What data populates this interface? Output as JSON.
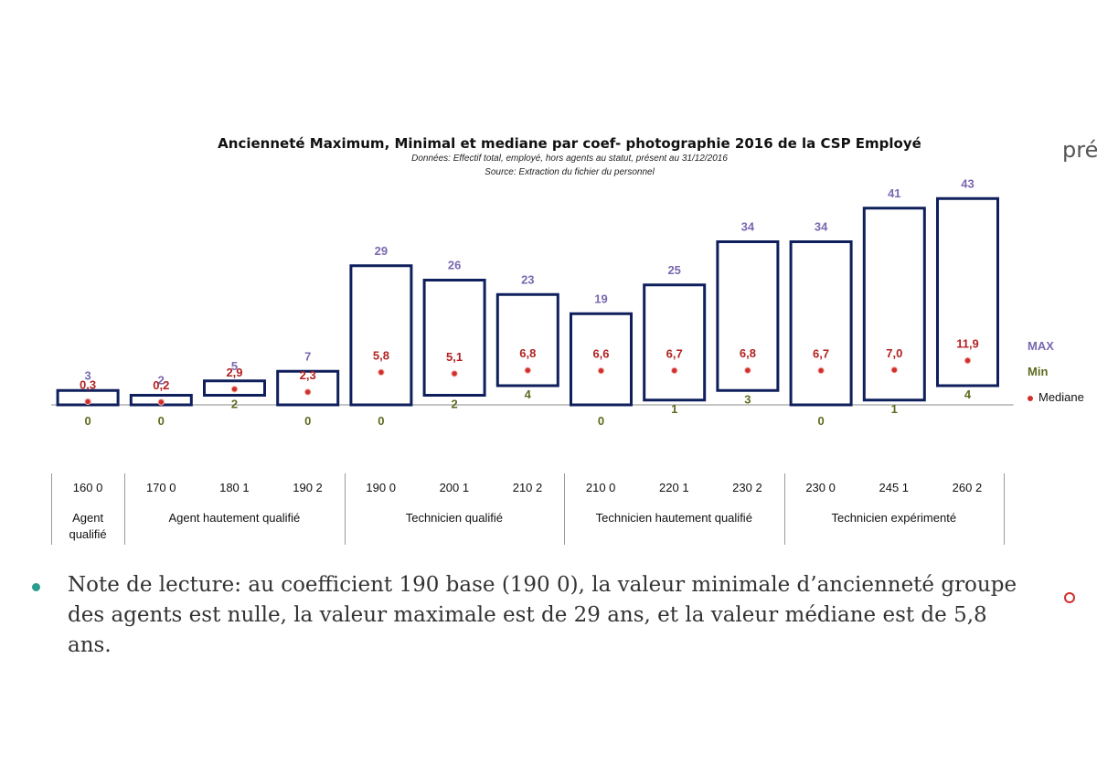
{
  "chart_data": {
    "type": "bar",
    "title": "Ancienneté Maximum, Minimal et mediane par coef- photographie 2016 de la CSP Employé",
    "subtitle_1": "Données: Effectif  total, employé, hors agents au statut, présent au 31/12/2016",
    "subtitle_2": "Source: Extraction du fichier du personnel",
    "categories": [
      "160 0",
      "170 0",
      "180 1",
      "190 2",
      "190 0",
      "200 1",
      "210 2",
      "210 0",
      "220 1",
      "230 2",
      "230 0",
      "245 1",
      "260 2"
    ],
    "series": [
      {
        "name": "MAX",
        "values": [
          3,
          2,
          5,
          7,
          29,
          26,
          23,
          19,
          25,
          34,
          34,
          41,
          43
        ]
      },
      {
        "name": "Min",
        "values": [
          0,
          0,
          2,
          0,
          0,
          2,
          4,
          0,
          1,
          3,
          0,
          1,
          4
        ]
      },
      {
        "name": "Mediane",
        "values": [
          0.3,
          0.2,
          2.9,
          2.3,
          5.8,
          5.1,
          6.8,
          6.6,
          6.7,
          6.8,
          6.7,
          7.0,
          11.9
        ]
      }
    ],
    "mediane_labels": [
      "0,3",
      "0,2",
      "2,9",
      "2,3",
      "5,8",
      "5,1",
      "6,8",
      "6,6",
      "6,7",
      "6,8",
      "6,7",
      "7,0",
      "11,9"
    ],
    "groups": [
      {
        "label": "Agent qualifié",
        "span": 1
      },
      {
        "label": "Agent hautement qualifié",
        "span": 3
      },
      {
        "label": "Technicien qualifié",
        "span": 3
      },
      {
        "label": "Technicien hautement qualifié",
        "span": 3
      },
      {
        "label": "Technicien expérimenté",
        "span": 3
      }
    ],
    "legend_position": "right",
    "colors": {
      "max": "#7a68b0",
      "min": "#5e6b1f",
      "mediane": "#b22222",
      "bar_stroke": "#0f1f5c"
    }
  },
  "legend": {
    "max": "MAX",
    "min": "Min",
    "mediane": "Mediane"
  },
  "side_text": "pré",
  "note": "Note de lecture: au coefficient 190 base (190 0), la valeur minimale d’ancienneté groupe des agents est nulle, la valeur maximale est de 29 ans, et la valeur médiane est de 5,8 ans."
}
